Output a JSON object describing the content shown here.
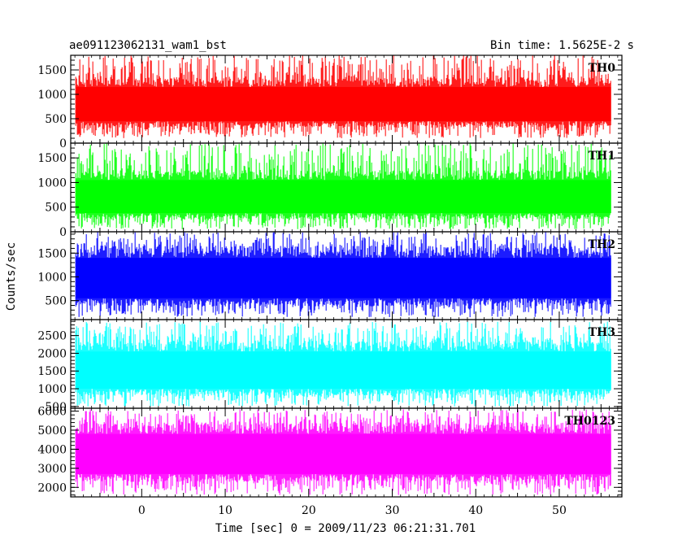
{
  "chart_data": {
    "type": "line",
    "title_left": "ae091123062131_wam1_bst",
    "title_right": "Bin time: 1.5625E-2 s",
    "xlabel": "Time [sec] 0 = 2009/11/23 06:21:31.701",
    "ylabel": "Counts/sec",
    "xlim": [
      -8.5,
      57.5
    ],
    "x_data_range": [
      -7.9,
      56.2
    ],
    "x_ticks": [
      0,
      10,
      20,
      30,
      40,
      50
    ],
    "x_tick_labels": [
      "0",
      "10",
      "20",
      "30",
      "40",
      "50"
    ],
    "panels": [
      {
        "name": "TH0",
        "color": "#ff0000",
        "ylim": [
          0,
          1800
        ],
        "y_ticks": [
          0,
          500,
          1000,
          1500
        ],
        "y_tick_labels": [
          "0",
          "500",
          "1000",
          "1500"
        ],
        "band": [
          450,
          1150
        ],
        "range": [
          100,
          1800
        ]
      },
      {
        "name": "TH1",
        "color": "#00ff00",
        "ylim": [
          0,
          1800
        ],
        "y_ticks": [
          0,
          500,
          1000,
          1500
        ],
        "y_tick_labels": [
          "0",
          "500",
          "1000",
          "1500"
        ],
        "band": [
          380,
          1050
        ],
        "range": [
          50,
          1800
        ]
      },
      {
        "name": "TH2",
        "color": "#0000ff",
        "ylim": [
          100,
          1950
        ],
        "y_ticks": [
          500,
          1000,
          1500
        ],
        "y_tick_labels": [
          "500",
          "1000",
          "1500"
        ],
        "band": [
          550,
          1400
        ],
        "range": [
          150,
          1950
        ]
      },
      {
        "name": "TH3",
        "color": "#00ffff",
        "ylim": [
          450,
          2950
        ],
        "y_ticks": [
          500,
          1000,
          1500,
          2000,
          2500
        ],
        "y_tick_labels": [
          "500",
          "1000",
          "1500",
          "2000",
          "2500"
        ],
        "band": [
          1000,
          2050
        ],
        "range": [
          500,
          2900
        ]
      },
      {
        "name": "TH0123",
        "color": "#ff00ff",
        "ylim": [
          1500,
          6150
        ],
        "y_ticks": [
          2000,
          3000,
          4000,
          5000,
          6000
        ],
        "y_tick_labels": [
          "2000",
          "3000",
          "4000",
          "5000",
          "6000"
        ],
        "band": [
          2700,
          4800
        ],
        "range": [
          1600,
          6100
        ]
      }
    ]
  }
}
